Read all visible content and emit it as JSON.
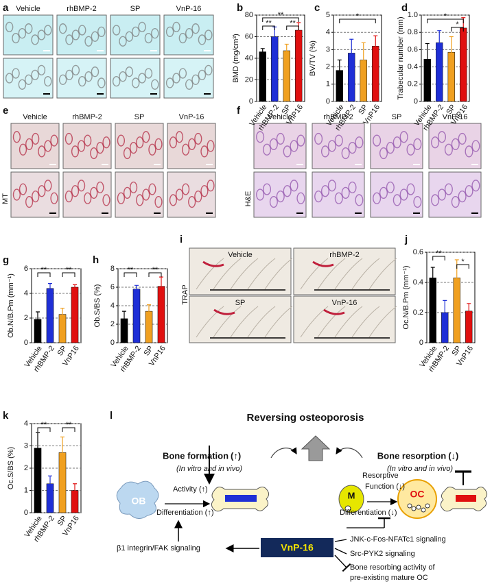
{
  "panel_labels": [
    "a",
    "b",
    "c",
    "d",
    "e",
    "f",
    "g",
    "h",
    "i",
    "j",
    "k",
    "l"
  ],
  "panel_a": {
    "labels": [
      "Vehicle",
      "rhBMP-2",
      "SP",
      "VnP-16"
    ]
  },
  "panel_e": {
    "labels": [
      "Vehicle",
      "rhBMP-2",
      "SP",
      "VnP-16"
    ],
    "stain": "MT"
  },
  "panel_f": {
    "labels": [
      "Vehicle",
      "rhBMP-2",
      "SP",
      "VnP-16"
    ],
    "stain": "H&E"
  },
  "panel_i": {
    "labels": [
      "Vehicle",
      "rhBMP-2",
      "SP",
      "VnP-16"
    ],
    "stain": "TRAP"
  },
  "chart_data": [
    {
      "type": "bar",
      "y_label": "BMD (mg/cm³)",
      "categories": [
        "Vehicle",
        "rhBMP-2",
        "SP",
        "VnP16"
      ],
      "values": [
        46,
        60,
        47,
        66
      ],
      "errors": [
        3,
        9,
        6,
        7
      ],
      "colors": [
        "#000000",
        "#1f2fd6",
        "#f0a020",
        "#e01010"
      ],
      "ylim": [
        0,
        80
      ],
      "yticks": [
        0,
        20,
        40,
        60,
        80
      ],
      "grid": true,
      "annotations": [
        "**",
        "**",
        "**"
      ]
    },
    {
      "type": "bar",
      "y_label": "BV/TV (%)",
      "categories": [
        "Vehicle",
        "rhBMP-2",
        "SP",
        "VnP16"
      ],
      "values": [
        1.8,
        2.8,
        2.4,
        3.2
      ],
      "errors": [
        0.6,
        0.8,
        1.0,
        0.6
      ],
      "colors": [
        "#000000",
        "#1f2fd6",
        "#f0a020",
        "#e01010"
      ],
      "ylim": [
        0,
        5
      ],
      "yticks": [
        0,
        1,
        2,
        3,
        4,
        5
      ],
      "grid": true,
      "annotations": [
        "*"
      ]
    },
    {
      "type": "bar",
      "y_label": "Trabecular number (mm)",
      "categories": [
        "Vehicle",
        "rhBMP-2",
        "SP",
        "VnP16"
      ],
      "values": [
        0.49,
        0.68,
        0.57,
        0.85
      ],
      "errors": [
        0.18,
        0.14,
        0.18,
        0.12
      ],
      "colors": [
        "#000000",
        "#1f2fd6",
        "#f0a020",
        "#e01010"
      ],
      "ylim": [
        0,
        1
      ],
      "yticks": [
        0,
        0.2,
        0.4,
        0.6,
        0.8,
        {
          "value": 1,
          "label": "1.0"
        }
      ],
      "grid": true,
      "annotations": [
        "*",
        "*"
      ]
    },
    {
      "type": "bar",
      "y_label": "Ob.N/B.Pm (mm⁻¹)",
      "categories": [
        "Vehicle",
        "rhBMP-2",
        "SP",
        "VnP16"
      ],
      "values": [
        1.9,
        4.4,
        2.3,
        4.5
      ],
      "errors": [
        0.6,
        0.4,
        0.5,
        0.2
      ],
      "colors": [
        "#000000",
        "#1f2fd6",
        "#f0a020",
        "#e01010"
      ],
      "ylim": [
        0,
        6
      ],
      "yticks": [
        0,
        2,
        4,
        6
      ],
      "grid": true,
      "annotations": [
        "**",
        "**"
      ]
    },
    {
      "type": "bar",
      "y_label": "Ob.S/BS (%)",
      "categories": [
        "Vehicle",
        "rhBMP-2",
        "SP",
        "VnP16"
      ],
      "values": [
        2.6,
        5.8,
        3.4,
        6.1
      ],
      "errors": [
        0.8,
        0.4,
        0.7,
        1.0
      ],
      "colors": [
        "#000000",
        "#1f2fd6",
        "#f0a020",
        "#e01010"
      ],
      "ylim": [
        0,
        8
      ],
      "yticks": [
        0,
        2,
        4,
        6,
        8
      ],
      "grid": true,
      "annotations": [
        "**",
        "**"
      ]
    },
    {
      "type": "bar",
      "y_label": "Oc.N/B.Pm (mm⁻¹)",
      "categories": [
        "Vehicle",
        "rhBMP-2",
        "SP",
        "VnP16"
      ],
      "values": [
        0.43,
        0.2,
        0.43,
        0.21
      ],
      "errors": [
        0.07,
        0.08,
        0.12,
        0.05
      ],
      "colors": [
        "#000000",
        "#1f2fd6",
        "#f0a020",
        "#e01010"
      ],
      "ylim": [
        0,
        0.6
      ],
      "yticks": [
        0,
        0.2,
        0.4,
        0.6
      ],
      "grid": true,
      "annotations": [
        "**",
        "*"
      ]
    },
    {
      "type": "bar",
      "y_label": "Oc.S/BS (%)",
      "categories": [
        "Vehicle",
        "rhBMP-2",
        "SP",
        "VnP16"
      ],
      "values": [
        2.9,
        1.3,
        2.7,
        1.0
      ],
      "errors": [
        0.7,
        0.35,
        0.7,
        0.3
      ],
      "colors": [
        "#000000",
        "#1f2fd6",
        "#f0a020",
        "#e01010"
      ],
      "ylim": [
        0,
        4
      ],
      "yticks": [
        0,
        1,
        2,
        3,
        4
      ],
      "grid": true,
      "annotations": [
        "**",
        "**"
      ]
    }
  ],
  "diagram": {
    "title": "Reversing osteoporosis",
    "formation": "Bone formation",
    "formation_arrow": "(↑)",
    "formation_note": "(In vitro and in vivo)",
    "resorption": "Bone resorption",
    "resorption_arrow": "(↓)",
    "resorption_note": "(In vitro and in vivo)",
    "ob": "OB",
    "activity": "Activity",
    "activity_arrow": "(↑)",
    "ob_diff": "Differentiation",
    "ob_diff_arrow": "(↑)",
    "m": "M",
    "resorptive": [
      "Resorptive",
      "Function"
    ],
    "resorptive_arrow": "(↓)",
    "oc_diff": "Differentiation",
    "oc_diff_arrow": "(↓)",
    "oc": "OC",
    "drug": "VnP-16",
    "integrin": "β1 integrin/FAK signaling",
    "targets": [
      "JNK-c-Fos-NFATc1 signaling",
      "Src-PYK2 signaling",
      "Bone resorbing activity of",
      "pre-existing mature OC"
    ]
  }
}
